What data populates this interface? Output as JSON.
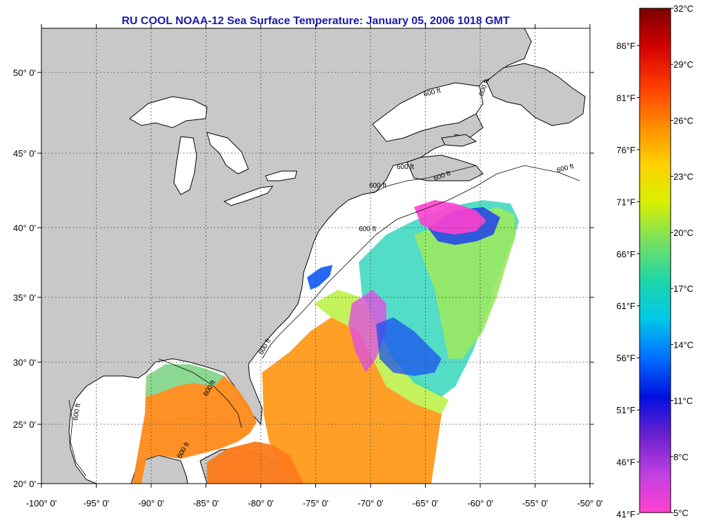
{
  "title": "RU COOL  NOAA-12  Sea Surface Temperature:  January 05, 2006 1018 GMT",
  "axes": {
    "lon_ticks": [
      "-100° 0'",
      "-95° 0'",
      "-90° 0'",
      "-85° 0'",
      "-80° 0'",
      "-75° 0'",
      "-70° 0'",
      "-65° 0'",
      "-60° 0'",
      "-55° 0'",
      "-50° 0'"
    ],
    "lat_ticks": [
      "20° 0'",
      "25° 0'",
      "30° 0'",
      "35° 0'",
      "40° 0'",
      "45° 0'",
      "50° 0'"
    ]
  },
  "colorbar": {
    "celsius_labels": [
      "32°C",
      "29°C",
      "26°C",
      "23°C",
      "20°C",
      "17°C",
      "14°C",
      "11°C",
      "8°C",
      "5°C"
    ],
    "fahrenheit_labels": [
      "86°F",
      "81°F",
      "76°F",
      "71°F",
      "66°F",
      "61°F",
      "56°F",
      "51°F",
      "46°F",
      "41°F"
    ],
    "colors": [
      "#7a0000",
      "#d40000",
      "#ff3b00",
      "#ff8a00",
      "#ffd000",
      "#d8f000",
      "#78e060",
      "#20d6a8",
      "#00c8e8",
      "#0070ff",
      "#0010e0",
      "#6a20d0",
      "#c040e0",
      "#ff40d0"
    ]
  },
  "isobath_labels": [
    "600 ft",
    "600 ft",
    "600 ft",
    "600 ft",
    "600 ft",
    "600 ft",
    "600 ft",
    "600 ft",
    "600 ft",
    "600 ft",
    "600 ft"
  ],
  "colors": {
    "land": "#c8c8c8",
    "no_data": "#ffffff",
    "title": "#1a1aa8",
    "grid": "#505050"
  }
}
